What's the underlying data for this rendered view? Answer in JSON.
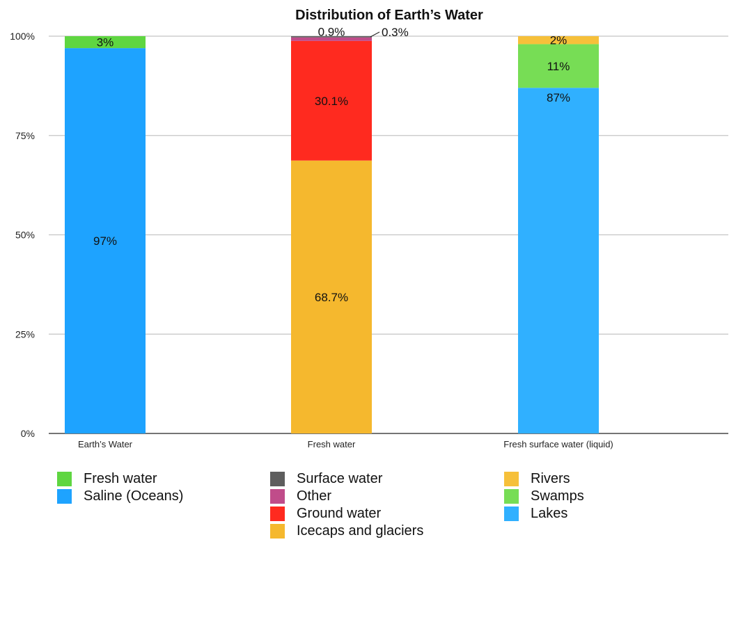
{
  "chart_data": {
    "type": "bar",
    "stacked": true,
    "title": "Distribution of Earth’s Water",
    "xlabel": "",
    "ylabel": "",
    "ylim": [
      0,
      100
    ],
    "y_ticks": [
      "0%",
      "25%",
      "50%",
      "75%",
      "100%"
    ],
    "grid": true,
    "legend_position": "bottom",
    "categories": [
      "Earth’s Water",
      "Fresh water",
      "Fresh surface water (liquid)"
    ],
    "bars": [
      {
        "category": "Earth’s Water",
        "segments": [
          {
            "name": "Saline (Oceans)",
            "value": 97,
            "label": "97%",
            "color": "#1ea3ff"
          },
          {
            "name": "Fresh water",
            "value": 3,
            "label": "3%",
            "color": "#5fd641"
          }
        ]
      },
      {
        "category": "Fresh water",
        "segments": [
          {
            "name": "Icecaps and glaciers",
            "value": 68.7,
            "label": "68.7%",
            "color": "#f5b82e"
          },
          {
            "name": "Ground water",
            "value": 30.1,
            "label": "30.1%",
            "color": "#ff2a1f"
          },
          {
            "name": "Other",
            "value": 0.9,
            "label": "0.9%",
            "color": "#c04c8a"
          },
          {
            "name": "Surface water",
            "value": 0.3,
            "label": "0.3%",
            "color": "#5e5e5e"
          }
        ]
      },
      {
        "category": "Fresh surface water (liquid)",
        "segments": [
          {
            "name": "Lakes",
            "value": 87,
            "label": "87%",
            "color": "#30b0ff"
          },
          {
            "name": "Swamps",
            "value": 11,
            "label": "11%",
            "color": "#77dd55"
          },
          {
            "name": "Rivers",
            "value": 2,
            "label": "2%",
            "color": "#f6c03a"
          }
        ]
      }
    ],
    "legend": [
      [
        {
          "name": "Fresh water",
          "color": "#5fd641"
        },
        {
          "name": "Saline (Oceans)",
          "color": "#1ea3ff"
        }
      ],
      [
        {
          "name": "Surface water",
          "color": "#5e5e5e"
        },
        {
          "name": "Other",
          "color": "#c04c8a"
        },
        {
          "name": "Ground water",
          "color": "#ff2a1f"
        },
        {
          "name": "Icecaps and glaciers",
          "color": "#f5b82e"
        }
      ],
      [
        {
          "name": "Rivers",
          "color": "#f6c03a"
        },
        {
          "name": "Swamps",
          "color": "#77dd55"
        },
        {
          "name": "Lakes",
          "color": "#30b0ff"
        }
      ]
    ]
  }
}
